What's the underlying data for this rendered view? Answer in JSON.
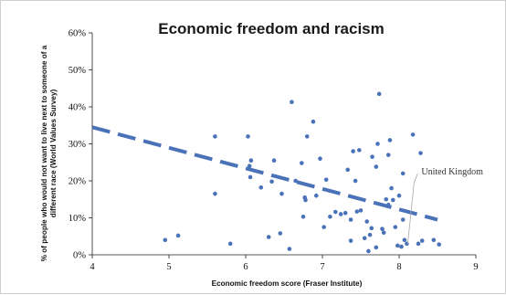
{
  "chart_data": {
    "type": "scatter",
    "title": "Economic freedom and racism",
    "xlabel": "Economic freedom score (Fraser Institute)",
    "ylabel": [
      "% of people who would not want to live next to someone of a",
      "different race (World Values Survey)"
    ],
    "xlim": [
      4,
      9
    ],
    "ylim": [
      0,
      60
    ],
    "x_ticks": [
      "4",
      "5",
      "6",
      "7",
      "8",
      "9"
    ],
    "y_ticks": [
      "0%",
      "10%",
      "20%",
      "30%",
      "40%",
      "50%",
      "60%"
    ],
    "grid": false,
    "colors": {
      "points": "#4a72b8",
      "trend": "#4a72b8",
      "leader": "#aaaaaa"
    },
    "points": [
      [
        4.95,
        4.0
      ],
      [
        5.12,
        5.2
      ],
      [
        5.6,
        32.0
      ],
      [
        5.6,
        16.5
      ],
      [
        5.8,
        3.0
      ],
      [
        6.03,
        32.0
      ],
      [
        6.05,
        24.0
      ],
      [
        6.07,
        25.5
      ],
      [
        6.06,
        21.0
      ],
      [
        6.2,
        18.2
      ],
      [
        6.3,
        4.8
      ],
      [
        6.34,
        19.8
      ],
      [
        6.37,
        25.5
      ],
      [
        6.45,
        5.8
      ],
      [
        6.47,
        16.5
      ],
      [
        6.57,
        1.6
      ],
      [
        6.6,
        41.3
      ],
      [
        6.65,
        20.0
      ],
      [
        6.73,
        24.8
      ],
      [
        6.75,
        10.3
      ],
      [
        6.77,
        15.5
      ],
      [
        6.78,
        14.8
      ],
      [
        6.8,
        32.0
      ],
      [
        6.88,
        36.0
      ],
      [
        6.92,
        16.0
      ],
      [
        6.97,
        26.0
      ],
      [
        7.02,
        7.5
      ],
      [
        7.05,
        20.3
      ],
      [
        7.1,
        10.3
      ],
      [
        7.17,
        11.6
      ],
      [
        7.24,
        11.0
      ],
      [
        7.3,
        11.3
      ],
      [
        7.33,
        23.0
      ],
      [
        7.37,
        9.5
      ],
      [
        7.4,
        28.0
      ],
      [
        7.43,
        20.0
      ],
      [
        7.48,
        28.3
      ],
      [
        7.37,
        3.8
      ],
      [
        7.45,
        11.7
      ],
      [
        7.5,
        12.0
      ],
      [
        7.55,
        4.5
      ],
      [
        7.58,
        9.0
      ],
      [
        7.6,
        1.0
      ],
      [
        7.62,
        5.4
      ],
      [
        7.64,
        7.2
      ],
      [
        7.65,
        26.5
      ],
      [
        7.7,
        2.0
      ],
      [
        7.7,
        23.8
      ],
      [
        7.72,
        30.0
      ],
      [
        7.74,
        43.5
      ],
      [
        7.78,
        7.0
      ],
      [
        7.8,
        6.0
      ],
      [
        7.83,
        15.0
      ],
      [
        7.86,
        13.5
      ],
      [
        7.86,
        27.0
      ],
      [
        7.88,
        31.0
      ],
      [
        7.9,
        18.0
      ],
      [
        7.92,
        14.8
      ],
      [
        7.95,
        7.5
      ],
      [
        7.98,
        2.5
      ],
      [
        8.0,
        16.0
      ],
      [
        8.05,
        22.0
      ],
      [
        8.05,
        9.5
      ],
      [
        8.07,
        4.0
      ],
      [
        8.1,
        3.0
      ],
      [
        8.18,
        32.5
      ],
      [
        8.25,
        3.0
      ],
      [
        8.3,
        3.8
      ],
      [
        8.45,
        4.0
      ],
      [
        8.52,
        2.8
      ],
      [
        8.03,
        2.2
      ],
      [
        8.28,
        27.5
      ]
    ],
    "trendline": {
      "x": [
        4.0,
        8.5
      ],
      "y": [
        34.5,
        9.5
      ],
      "style": "dashed"
    },
    "annotations": [
      {
        "text": "United Kingdom",
        "point": [
          8.1,
          2.2
        ],
        "label_at": [
          8.29,
          22.5
        ]
      }
    ]
  }
}
